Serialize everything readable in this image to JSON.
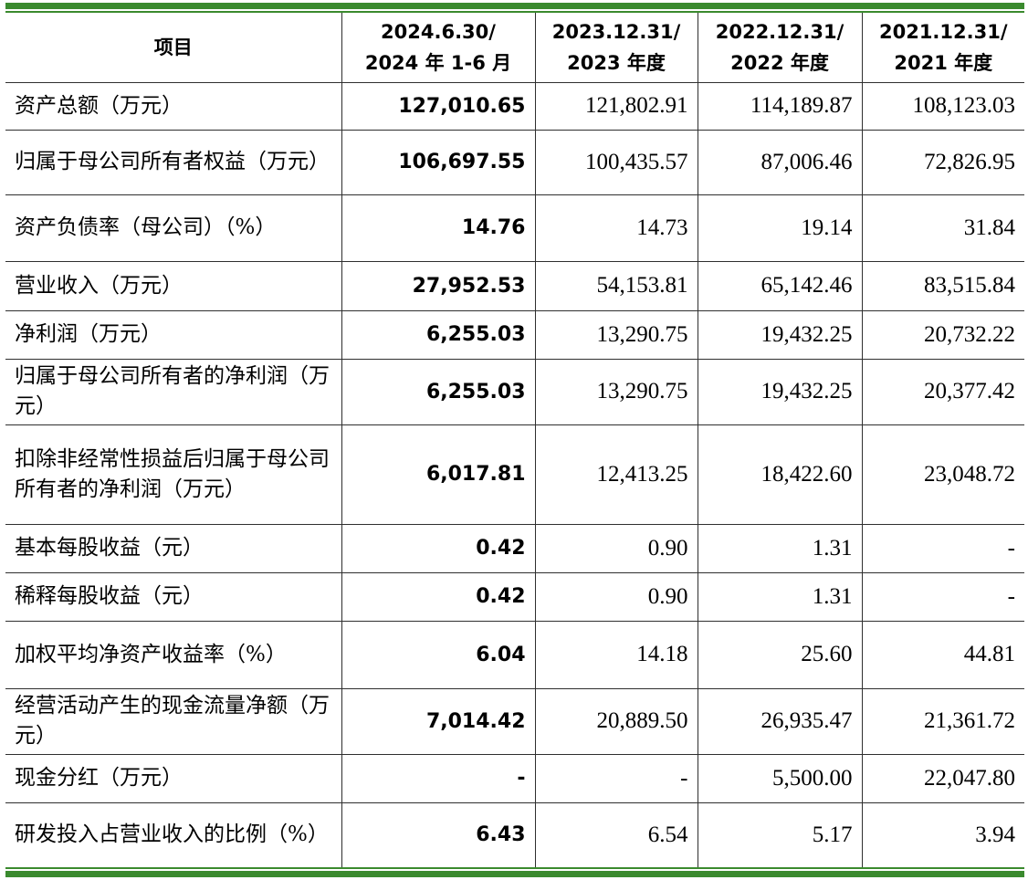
{
  "table": {
    "header": {
      "item": "项目",
      "cols": [
        {
          "line1": "2024.6.30/",
          "line2": "2024 年 1-6 月"
        },
        {
          "line1": "2023.12.31/",
          "line2": "2023 年度"
        },
        {
          "line1": "2022.12.31/",
          "line2": "2022 年度"
        },
        {
          "line1": "2021.12.31/",
          "line2": "2021 年度"
        }
      ]
    },
    "rows": [
      {
        "label": "资产总额（万元）",
        "values": [
          "127,010.65",
          "121,802.91",
          "114,189.87",
          "108,123.03"
        ]
      },
      {
        "label": "归属于母公司所有者权益（万元）",
        "values": [
          "106,697.55",
          "100,435.57",
          "87,006.46",
          "72,826.95"
        ]
      },
      {
        "label": "资产负债率（母公司）（%）",
        "values": [
          "14.76",
          "14.73",
          "19.14",
          "31.84"
        ]
      },
      {
        "label": "营业收入（万元）",
        "values": [
          "27,952.53",
          "54,153.81",
          "65,142.46",
          "83,515.84"
        ]
      },
      {
        "label": "净利润（万元）",
        "values": [
          "6,255.03",
          "13,290.75",
          "19,432.25",
          "20,732.22"
        ]
      },
      {
        "label": "归属于母公司所有者的净利润（万元）",
        "values": [
          "6,255.03",
          "13,290.75",
          "19,432.25",
          "20,377.42"
        ]
      },
      {
        "label": "扣除非经常性损益后归属于母公司所有者的净利润（万元）",
        "values": [
          "6,017.81",
          "12,413.25",
          "18,422.60",
          "23,048.72"
        ]
      },
      {
        "label": "基本每股收益（元）",
        "values": [
          "0.42",
          "0.90",
          "1.31",
          "-"
        ]
      },
      {
        "label": "稀释每股收益（元）",
        "values": [
          "0.42",
          "0.90",
          "1.31",
          "-"
        ]
      },
      {
        "label": "加权平均净资产收益率（%）",
        "values": [
          "6.04",
          "14.18",
          "25.60",
          "44.81"
        ]
      },
      {
        "label": "经营活动产生的现金流量净额（万元）",
        "values": [
          "7,014.42",
          "20,889.50",
          "26,935.47",
          "21,361.72"
        ]
      },
      {
        "label": "现金分红（万元）",
        "values": [
          "-",
          "-",
          "5,500.00",
          "22,047.80"
        ]
      },
      {
        "label": "研发投入占营业收入的比例（%）",
        "values": [
          "6.43",
          "6.54",
          "5.17",
          "3.94"
        ]
      }
    ]
  }
}
